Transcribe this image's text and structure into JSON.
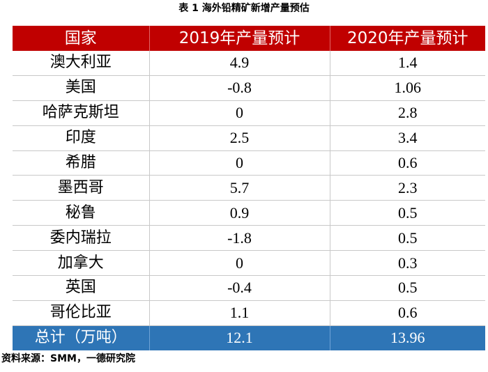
{
  "caption": "表 1 海外铅精矿新增产量预估",
  "table": {
    "headers": [
      "国家",
      "2019年产量预计",
      "2020年产量预计"
    ],
    "rows": [
      {
        "country": "澳大利亚",
        "y2019": "4.9",
        "y2020": "1.4"
      },
      {
        "country": "美国",
        "y2019": "-0.8",
        "y2020": "1.06"
      },
      {
        "country": "哈萨克斯坦",
        "y2019": "0",
        "y2020": "2.8"
      },
      {
        "country": "印度",
        "y2019": "2.5",
        "y2020": "3.4"
      },
      {
        "country": "希腊",
        "y2019": "0",
        "y2020": "0.6"
      },
      {
        "country": "墨西哥",
        "y2019": "5.7",
        "y2020": "2.3"
      },
      {
        "country": "秘鲁",
        "y2019": "0.9",
        "y2020": "0.5"
      },
      {
        "country": "委内瑞拉",
        "y2019": "-1.8",
        "y2020": "0.5"
      },
      {
        "country": "加拿大",
        "y2019": "0",
        "y2020": "0.3"
      },
      {
        "country": "英国",
        "y2019": "-0.4",
        "y2020": "0.5"
      },
      {
        "country": "哥伦比亚",
        "y2019": "1.1",
        "y2020": "0.6"
      }
    ],
    "total": {
      "label": "总计（万吨）",
      "y2019": "12.1",
      "y2020": "13.96"
    }
  },
  "source": "资料来源：SMM，一德研究院",
  "colors": {
    "header_bg": "#c00000",
    "total_bg": "#2e75b6",
    "text": "#000000"
  }
}
